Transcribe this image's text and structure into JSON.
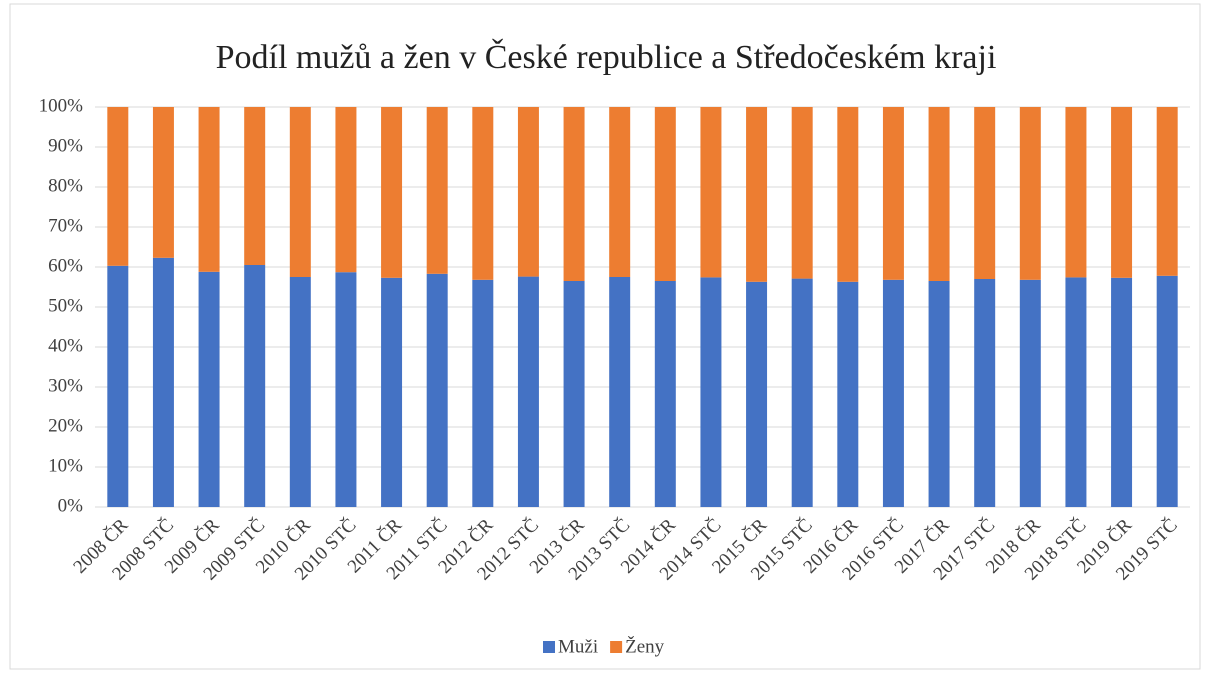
{
  "chart_data": {
    "type": "stacked_bar",
    "title": "Podíl mužů a žen v České republice a Středočeském kraji",
    "categories": [
      "2008 ČR",
      "2008 STČ",
      "2009 ČR",
      "2009 STČ",
      "2010 ČR",
      "2010 STČ",
      "2011 ČR",
      "2011 STČ",
      "2012 ČR",
      "2012 STČ",
      "2013 ČR",
      "2013 STČ",
      "2014 ČR",
      "2014 STČ",
      "2015 ČR",
      "2015 STČ",
      "2016 ČR",
      "2016 STČ",
      "2017 ČR",
      "2017 STČ",
      "2018 ČR",
      "2018 STČ",
      "2019 ČR",
      "2019 STČ"
    ],
    "series": [
      {
        "name": "Muži",
        "color": "#4472c4",
        "values": [
          60.3,
          62.3,
          58.8,
          60.5,
          57.5,
          58.7,
          57.3,
          58.3,
          56.8,
          57.6,
          56.5,
          57.5,
          56.5,
          57.4,
          56.3,
          57.1,
          56.3,
          56.8,
          56.5,
          57.0,
          56.8,
          57.4,
          57.3,
          57.8
        ]
      },
      {
        "name": "Ženy",
        "color": "#ed7d31",
        "values": [
          39.7,
          37.7,
          41.2,
          39.5,
          42.5,
          41.3,
          42.7,
          41.7,
          43.2,
          42.4,
          43.5,
          42.5,
          43.5,
          42.6,
          43.7,
          42.9,
          43.7,
          43.2,
          43.5,
          43.0,
          43.2,
          42.6,
          42.7,
          42.2
        ]
      }
    ],
    "ylim": [
      0,
      100
    ],
    "yticks": [
      {
        "value": 0,
        "label": "0%"
      },
      {
        "value": 10,
        "label": "10%"
      },
      {
        "value": 20,
        "label": "20%"
      },
      {
        "value": 30,
        "label": "30%"
      },
      {
        "value": 40,
        "label": "40%"
      },
      {
        "value": 50,
        "label": "50%"
      },
      {
        "value": 60,
        "label": "60%"
      },
      {
        "value": 70,
        "label": "70%"
      },
      {
        "value": 80,
        "label": "80%"
      },
      {
        "value": 90,
        "label": "90%"
      },
      {
        "value": 100,
        "label": "100%"
      }
    ],
    "grid": true,
    "legend": "bottom"
  }
}
